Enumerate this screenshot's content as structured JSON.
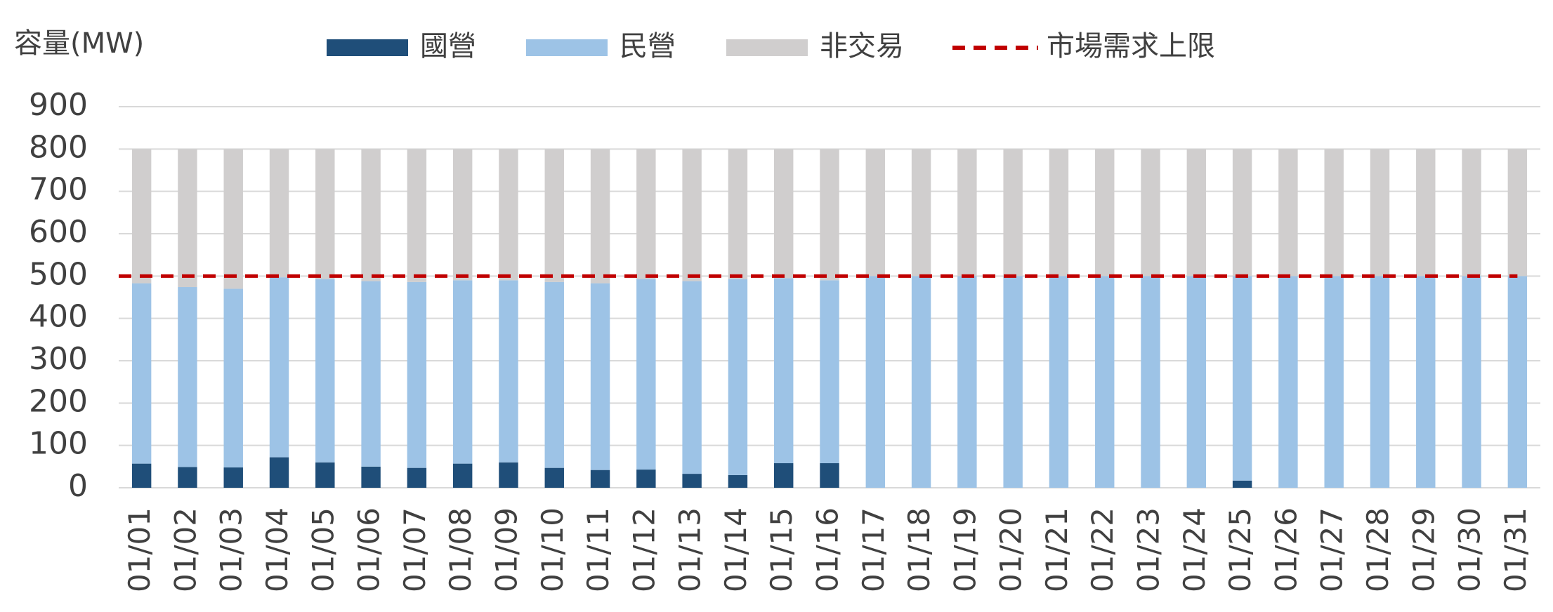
{
  "chart_data": {
    "type": "bar",
    "stacked": true,
    "y_label": "容量(MW)",
    "categories": [
      "01/01",
      "01/02",
      "01/03",
      "01/04",
      "01/05",
      "01/06",
      "01/07",
      "01/08",
      "01/09",
      "01/10",
      "01/11",
      "01/12",
      "01/13",
      "01/14",
      "01/15",
      "01/16",
      "01/17",
      "01/18",
      "01/19",
      "01/20",
      "01/21",
      "01/22",
      "01/23",
      "01/24",
      "01/25",
      "01/26",
      "01/27",
      "01/28",
      "01/29",
      "01/30",
      "01/31"
    ],
    "series": [
      {
        "name": "國營",
        "color": "#1f4e79",
        "values": [
          57,
          49,
          48,
          72,
          60,
          50,
          47,
          57,
          60,
          47,
          42,
          43,
          33,
          30,
          58,
          58,
          0,
          0,
          0,
          0,
          0,
          0,
          0,
          0,
          17,
          0,
          0,
          0,
          0,
          0,
          0
        ]
      },
      {
        "name": "民營",
        "color": "#9dc3e6",
        "values": [
          426,
          425,
          422,
          425,
          433,
          438,
          439,
          433,
          430,
          439,
          441,
          450,
          455,
          463,
          437,
          432,
          500,
          500,
          500,
          500,
          500,
          500,
          500,
          500,
          483,
          500,
          500,
          500,
          500,
          500,
          500
        ]
      },
      {
        "name": "非交易",
        "color": "#d0cece",
        "values": [
          317,
          326,
          330,
          303,
          307,
          312,
          314,
          310,
          310,
          314,
          317,
          307,
          312,
          307,
          305,
          310,
          300,
          300,
          300,
          300,
          300,
          300,
          300,
          300,
          300,
          300,
          300,
          300,
          300,
          300,
          300
        ]
      },
      {
        "name": "市場需求上限",
        "color": "#c00000",
        "type": "line",
        "dashed": true,
        "values": [
          500,
          500,
          500,
          500,
          500,
          500,
          500,
          500,
          500,
          500,
          500,
          500,
          500,
          500,
          500,
          500,
          500,
          500,
          500,
          500,
          500,
          500,
          500,
          500,
          500,
          500,
          500,
          500,
          500,
          500,
          500
        ]
      }
    ],
    "ylim": [
      0,
      900
    ],
    "yticks": [
      0,
      100,
      200,
      300,
      400,
      500,
      600,
      700,
      800,
      900
    ],
    "grid": true
  }
}
